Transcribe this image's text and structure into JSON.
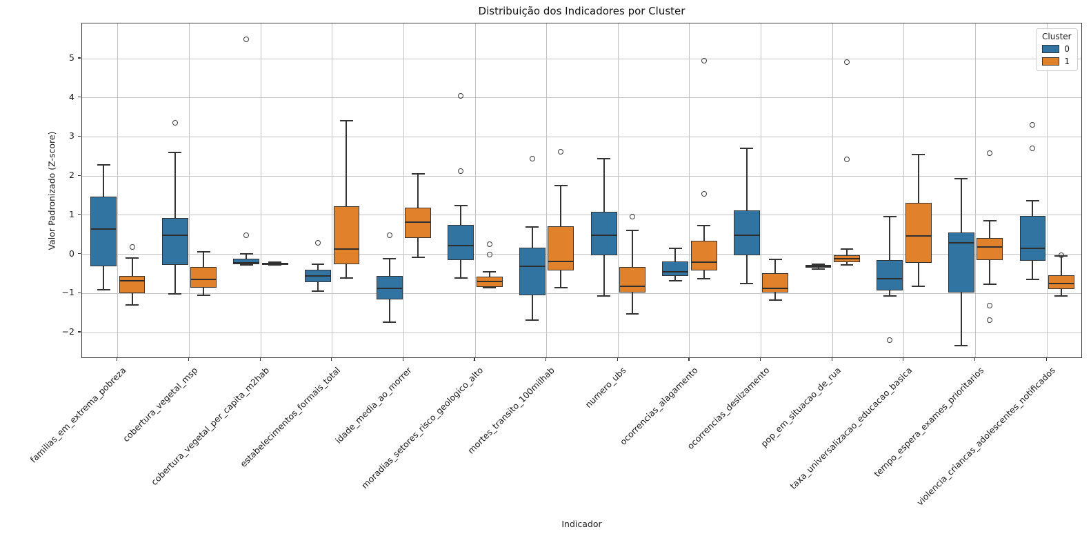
{
  "chart_data": {
    "type": "boxplot",
    "title": "Distribuição dos Indicadores por Cluster",
    "xlabel": "Indicador",
    "ylabel": "Valor Padronizado (Z-score)",
    "legend_title": "Cluster",
    "legend_position": "upper right",
    "grid": true,
    "ylim": [
      -2.67,
      5.9
    ],
    "ytick_values": [
      -2,
      -1,
      0,
      1,
      2,
      3,
      4,
      5
    ],
    "ytick_labels": [
      "−2",
      "−1",
      "0",
      "1",
      "2",
      "3",
      "4",
      "5"
    ],
    "categories": [
      "familias_em_extrema_pobreza",
      "cobertura_vegetal_msp",
      "cobertura_vegetal_per_capita_m2hab",
      "estabelecimentos_formais_total",
      "idade_media_ao_morrer",
      "moradias_setores_risco_geologico_alto",
      "mortes_transito_100milhab",
      "numero_ubs",
      "ocorrencias_alagamento",
      "ocorrencias_deslizamento",
      "pop_em_situacao_de_rua",
      "taxa_universalizacao_educacao_basica",
      "tempo_espera_exames_prioritarios",
      "violencia_criancas_adolescentes_notificados"
    ],
    "series": [
      {
        "name": "0",
        "color": "#3274a1",
        "boxes": [
          {
            "whislo": -0.9,
            "q1": -0.3,
            "med": 0.64,
            "q3": 1.47,
            "whishi": 2.28,
            "fliers": []
          },
          {
            "whislo": -1.02,
            "q1": -0.28,
            "med": 0.49,
            "q3": 0.92,
            "whishi": 2.6,
            "fliers": [
              3.36
            ]
          },
          {
            "whislo": -0.28,
            "q1": -0.26,
            "med": -0.22,
            "q3": -0.12,
            "whishi": 0.01,
            "fliers": [
              0.49,
              5.49
            ]
          },
          {
            "whislo": -0.95,
            "q1": -0.72,
            "med": -0.55,
            "q3": -0.4,
            "whishi": -0.25,
            "fliers": [
              0.29
            ]
          },
          {
            "whislo": -1.73,
            "q1": -1.15,
            "med": -0.88,
            "q3": -0.55,
            "whishi": -0.12,
            "fliers": [
              0.49
            ]
          },
          {
            "whislo": -0.6,
            "q1": -0.15,
            "med": 0.23,
            "q3": 0.75,
            "whishi": 1.25,
            "fliers": [
              2.12,
              4.05
            ]
          },
          {
            "whislo": -1.68,
            "q1": -1.05,
            "med": -0.3,
            "q3": 0.17,
            "whishi": 0.7,
            "fliers": [
              2.44
            ]
          },
          {
            "whislo": -1.07,
            "q1": -0.02,
            "med": 0.48,
            "q3": 1.09,
            "whishi": 2.45,
            "fliers": []
          },
          {
            "whislo": -0.67,
            "q1": -0.55,
            "med": -0.45,
            "q3": -0.18,
            "whishi": 0.15,
            "fliers": []
          },
          {
            "whislo": -0.75,
            "q1": -0.03,
            "med": 0.49,
            "q3": 1.12,
            "whishi": 2.7,
            "fliers": []
          },
          {
            "whislo": -0.37,
            "q1": -0.34,
            "med": -0.3,
            "q3": -0.27,
            "whishi": -0.25,
            "fliers": []
          },
          {
            "whislo": -1.07,
            "q1": -0.93,
            "med": -0.62,
            "q3": -0.14,
            "whishi": 0.97,
            "fliers": [
              -2.2
            ]
          },
          {
            "whislo": -2.33,
            "q1": -0.98,
            "med": 0.29,
            "q3": 0.55,
            "whishi": 1.93,
            "fliers": []
          },
          {
            "whislo": -0.64,
            "q1": -0.16,
            "med": 0.16,
            "q3": 0.98,
            "whishi": 1.37,
            "fliers": [
              2.7,
              3.3
            ]
          }
        ]
      },
      {
        "name": "1",
        "color": "#e1812c",
        "boxes": [
          {
            "whislo": -1.3,
            "q1": -1.0,
            "med": -0.68,
            "q3": -0.55,
            "whishi": -0.1,
            "fliers": [
              0.18
            ]
          },
          {
            "whislo": -1.05,
            "q1": -0.86,
            "med": -0.65,
            "q3": -0.33,
            "whishi": 0.07,
            "fliers": []
          },
          {
            "whislo": -0.28,
            "q1": -0.27,
            "med": -0.245,
            "q3": -0.22,
            "whishi": -0.2,
            "fliers": []
          },
          {
            "whislo": -0.6,
            "q1": -0.25,
            "med": 0.14,
            "q3": 1.22,
            "whishi": 3.42,
            "fliers": []
          },
          {
            "whislo": -0.08,
            "q1": 0.42,
            "med": 0.83,
            "q3": 1.2,
            "whishi": 2.06,
            "fliers": []
          },
          {
            "whislo": -0.86,
            "q1": -0.84,
            "med": -0.7,
            "q3": -0.58,
            "whishi": -0.44,
            "fliers": [
              0.0,
              0.25
            ]
          },
          {
            "whislo": -0.86,
            "q1": -0.42,
            "med": -0.18,
            "q3": 0.71,
            "whishi": 1.75,
            "fliers": [
              2.62
            ]
          },
          {
            "whislo": -1.52,
            "q1": -0.98,
            "med": -0.81,
            "q3": -0.33,
            "whishi": 0.61,
            "fliers": [
              0.96
            ]
          },
          {
            "whislo": -0.62,
            "q1": -0.42,
            "med": -0.2,
            "q3": 0.35,
            "whishi": 0.73,
            "fliers": [
              1.55,
              4.95
            ]
          },
          {
            "whislo": -1.17,
            "q1": -0.97,
            "med": -0.88,
            "q3": -0.48,
            "whishi": -0.13,
            "fliers": []
          },
          {
            "whislo": -0.27,
            "q1": -0.21,
            "med": -0.11,
            "q3": -0.03,
            "whishi": 0.13,
            "fliers": [
              2.42,
              4.91
            ]
          },
          {
            "whislo": -0.82,
            "q1": -0.22,
            "med": 0.46,
            "q3": 1.32,
            "whishi": 2.55,
            "fliers": []
          },
          {
            "whislo": -0.77,
            "q1": -0.15,
            "med": 0.18,
            "q3": 0.41,
            "whishi": 0.86,
            "fliers": [
              2.59,
              -1.31,
              -1.69
            ]
          },
          {
            "whislo": -1.06,
            "q1": -0.89,
            "med": -0.75,
            "q3": -0.53,
            "whishi": -0.05,
            "fliers": [
              -0.02
            ]
          }
        ]
      }
    ]
  }
}
